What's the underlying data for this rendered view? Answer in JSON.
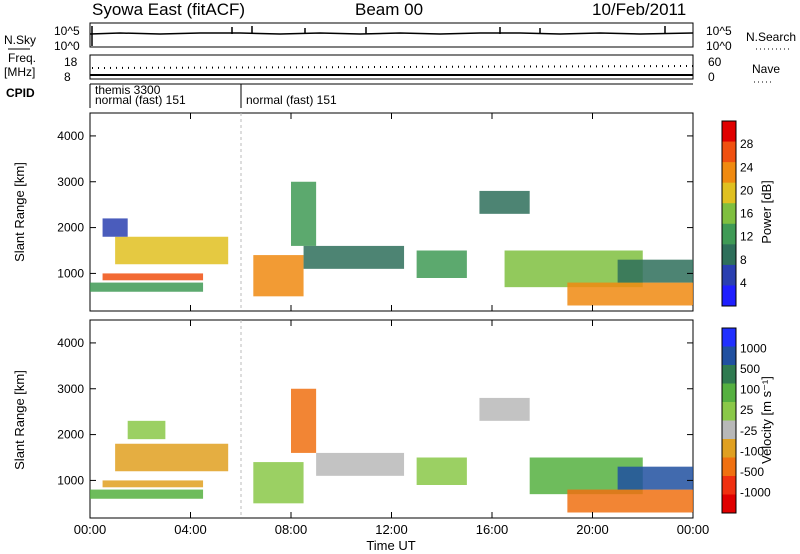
{
  "header": {
    "station": "Syowa East (fitACF)",
    "beam": "Beam 00",
    "date": "10/Feb/2011"
  },
  "strip_labels": {
    "nsky": "N.Sky",
    "freq_line1": "Freq.",
    "freq_line2": "[MHz]",
    "cpid": "CPID",
    "nsearch": "N.Search",
    "nave": "Nave"
  },
  "strip_ticks": {
    "nsky_left": [
      "10^5",
      "10^0"
    ],
    "nsky_right": [
      "10^5",
      "10^0"
    ],
    "freq_left": [
      "18",
      "8"
    ],
    "freq_right": [
      "60",
      "0"
    ]
  },
  "cpid_labels": {
    "segment1_line1": "themis 3300",
    "segment1_line2": "normal (fast) 151",
    "segment2": "normal (fast) 151"
  },
  "colors": {
    "power_scale": [
      "#1f1fff",
      "#2a3fb0",
      "#2e6f5a",
      "#3f9a55",
      "#7fbf3f",
      "#e0c020",
      "#f08a10",
      "#f05010",
      "#e00000"
    ],
    "velocity_scale": [
      "#2030ff",
      "#2050a0",
      "#2f7a50",
      "#55b040",
      "#8ac848",
      "#b8b8b8",
      "#e0a020",
      "#f07010",
      "#f03010",
      "#e00000"
    ]
  },
  "chart_data": [
    {
      "type": "heatmap",
      "title": "",
      "quantity": "Power",
      "xlabel": "",
      "ylabel": "Slant Range [km]",
      "xlim": [
        0,
        24
      ],
      "ylim": [
        180,
        4500
      ],
      "x_ticks": [
        "00:00",
        "04:00",
        "08:00",
        "12:00",
        "16:00",
        "20:00",
        "00:00"
      ],
      "y_ticks": [
        "1000",
        "2000",
        "3000",
        "4000"
      ],
      "colorbar": {
        "label": "Power [dB]",
        "ticks": [
          "28",
          "24",
          "20",
          "16",
          "12",
          "8",
          "4"
        ],
        "range": [
          0,
          30
        ]
      },
      "echo_regions": [
        {
          "t": [
            0.5,
            4.5
          ],
          "range": [
            850,
            1000
          ],
          "value": 24
        },
        {
          "t": [
            0.0,
            4.5
          ],
          "range": [
            600,
            800
          ],
          "value": 12
        },
        {
          "t": [
            1.0,
            5.5
          ],
          "range": [
            1200,
            1800
          ],
          "value": 18
        },
        {
          "t": [
            0.5,
            1.5
          ],
          "range": [
            1800,
            2200
          ],
          "value": 6
        },
        {
          "t": [
            6.5,
            8.5
          ],
          "range": [
            500,
            1400
          ],
          "value": 22
        },
        {
          "t": [
            8.0,
            9.0
          ],
          "range": [
            1600,
            3000
          ],
          "value": 10
        },
        {
          "t": [
            8.5,
            12.5
          ],
          "range": [
            1100,
            1600
          ],
          "value": 8
        },
        {
          "t": [
            13.0,
            15.0
          ],
          "range": [
            900,
            1500
          ],
          "value": 10
        },
        {
          "t": [
            15.5,
            17.5
          ],
          "range": [
            2300,
            2800
          ],
          "value": 8
        },
        {
          "t": [
            16.5,
            22.0
          ],
          "range": [
            700,
            1500
          ],
          "value": 14
        },
        {
          "t": [
            19.0,
            24.0
          ],
          "range": [
            300,
            800
          ],
          "value": 20
        },
        {
          "t": [
            21.0,
            24.0
          ],
          "range": [
            800,
            1300
          ],
          "value": 8
        }
      ]
    },
    {
      "type": "heatmap",
      "title": "",
      "quantity": "Velocity",
      "xlabel": "Time UT",
      "ylabel": "Slant Range [km]",
      "xlim": [
        0,
        24
      ],
      "ylim": [
        180,
        4500
      ],
      "x_ticks": [
        "00:00",
        "04:00",
        "08:00",
        "12:00",
        "16:00",
        "20:00",
        "00:00"
      ],
      "y_ticks": [
        "1000",
        "2000",
        "3000",
        "4000"
      ],
      "colorbar": {
        "label": "Velocity [m s⁻¹]",
        "ticks": [
          "1000",
          "500",
          "100",
          "25",
          "-25",
          "-100",
          "-500",
          "-1000"
        ],
        "range": [
          -1000,
          1000
        ]
      },
      "echo_regions": [
        {
          "t": [
            0.5,
            4.5
          ],
          "range": [
            850,
            1000
          ],
          "value": -300
        },
        {
          "t": [
            0.0,
            4.5
          ],
          "range": [
            600,
            800
          ],
          "value": 200
        },
        {
          "t": [
            1.0,
            5.5
          ],
          "range": [
            1200,
            1800
          ],
          "value": -300
        },
        {
          "t": [
            1.5,
            3.0
          ],
          "range": [
            1900,
            2300
          ],
          "value": 0
        },
        {
          "t": [
            6.5,
            8.5
          ],
          "range": [
            500,
            1400
          ],
          "value": 0
        },
        {
          "t": [
            8.0,
            9.0
          ],
          "range": [
            1600,
            3000
          ],
          "value": -600
        },
        {
          "t": [
            9.0,
            12.5
          ],
          "range": [
            1100,
            1600
          ],
          "value": -200
        },
        {
          "t": [
            13.0,
            15.0
          ],
          "range": [
            900,
            1500
          ],
          "value": 0
        },
        {
          "t": [
            15.5,
            17.5
          ],
          "range": [
            2300,
            2800
          ],
          "value": -200
        },
        {
          "t": [
            17.5,
            22.0
          ],
          "range": [
            700,
            1500
          ],
          "value": 300
        },
        {
          "t": [
            19.0,
            24.0
          ],
          "range": [
            300,
            800
          ],
          "value": -500
        },
        {
          "t": [
            21.0,
            24.0
          ],
          "range": [
            800,
            1300
          ],
          "value": 600
        }
      ]
    }
  ]
}
